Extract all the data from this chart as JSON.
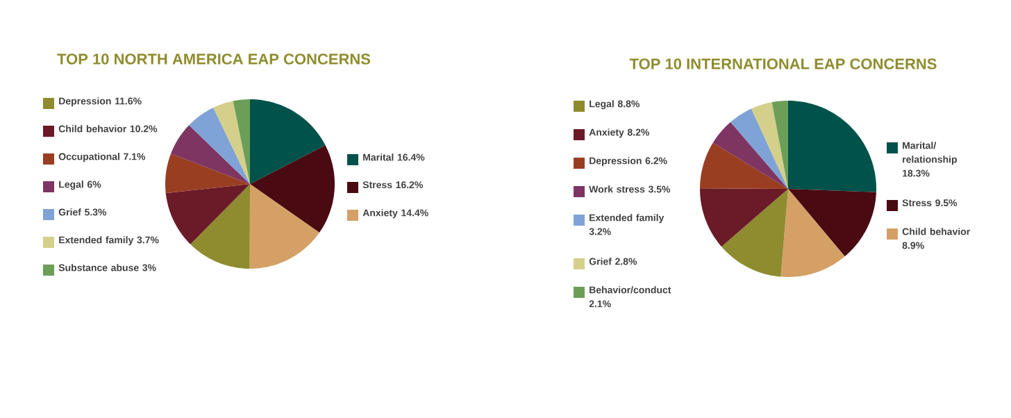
{
  "chart_data": [
    {
      "type": "pie",
      "title": "TOP 10 NORTH AMERICA EAP CONCERNS",
      "legend": "left",
      "categories": [
        "Marital",
        "Stress",
        "Anxiety",
        "Depression",
        "Child behavior",
        "Occupational",
        "Legal",
        "Grief",
        "Extended family",
        "Substance abuse"
      ],
      "values": [
        16.4,
        16.2,
        14.4,
        11.6,
        10.2,
        7.1,
        6,
        5.3,
        3.7,
        3
      ],
      "value_labels": [
        "16.4%",
        "16.2%",
        "14.4%",
        "11.6%",
        "10.2%",
        "7.1%",
        "6%",
        "5.3%",
        "3.7%",
        "3%"
      ],
      "colors": [
        "#00524a",
        "#4a0a12",
        "#d4a066",
        "#8e8c2e",
        "#6b1a28",
        "#9a3e22",
        "#7e3562",
        "#7fa3d6",
        "#d4cf8a",
        "#6c9e58"
      ]
    },
    {
      "type": "pie",
      "title": "TOP 10 INTERNATIONAL EAP CONCERNS",
      "legend": "left",
      "categories": [
        "Marital/ relationship",
        "Stress",
        "Child behavior",
        "Legal",
        "Anxiety",
        "Depression",
        "Work stress",
        "Extended family",
        "Grief",
        "Behavior/conduct"
      ],
      "values": [
        18.3,
        9.5,
        8.9,
        8.8,
        8.2,
        6.2,
        3.5,
        3.2,
        2.8,
        2.1
      ],
      "value_labels": [
        "18.3%",
        "9.5%",
        "8.9%",
        "8.8%",
        "8.2%",
        "6.2%",
        "3.5%",
        "3.2%",
        "2.8%",
        "2.1%"
      ],
      "colors": [
        "#00524a",
        "#4a0a12",
        "#d4a066",
        "#8e8c2e",
        "#6b1a28",
        "#9a3e22",
        "#7e3562",
        "#7fa3d6",
        "#d4cf8a",
        "#6c9e58"
      ]
    }
  ]
}
